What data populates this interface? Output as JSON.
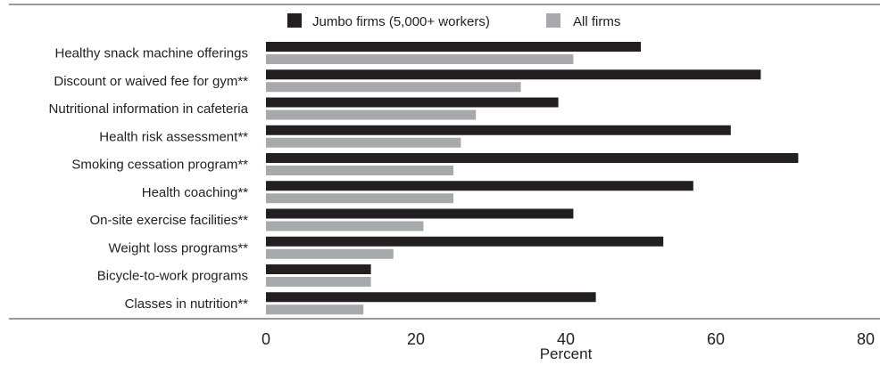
{
  "chart_data": {
    "type": "bar",
    "orientation": "horizontal",
    "title": "",
    "xlabel": "Percent",
    "ylabel": "",
    "xlim": [
      0,
      80
    ],
    "xticks": [
      0,
      20,
      40,
      60,
      80
    ],
    "grid": false,
    "legend_position": "top-center",
    "categories": [
      "Healthy snack machine offerings",
      "Discount or waived fee for gym**",
      "Nutritional information in cafeteria",
      "Health risk assessment**",
      "Smoking cessation program**",
      "Health coaching**",
      "On-site exercise facilities**",
      "Weight loss programs**",
      "Bicycle-to-work programs",
      "Classes in nutrition**"
    ],
    "series": [
      {
        "name": "Jumbo firms (5,000+ workers)",
        "color": "#231f20",
        "values": [
          50,
          66,
          39,
          62,
          71,
          57,
          41,
          53,
          14,
          44
        ]
      },
      {
        "name": "All firms",
        "color": "#a7a9ac",
        "values": [
          41,
          34,
          28,
          26,
          25,
          25,
          21,
          17,
          14,
          13
        ]
      }
    ]
  }
}
